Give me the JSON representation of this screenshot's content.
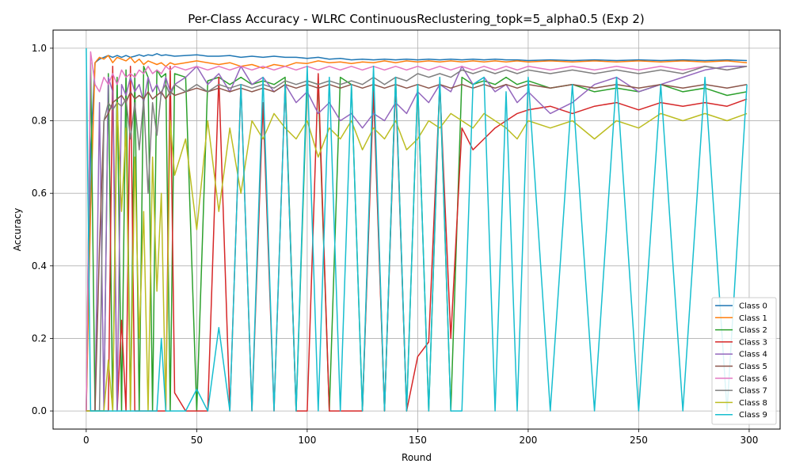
{
  "chart_data": {
    "type": "line",
    "title": "Per-Class Accuracy - WLRC ContinuousReclustering_topk=5_alpha0.5 (Exp 2)",
    "xlabel": "Round",
    "ylabel": "Accuracy",
    "xlim": [
      -15,
      314
    ],
    "ylim": [
      -0.05,
      1.05
    ],
    "xticks": [
      0,
      50,
      100,
      150,
      200,
      250,
      300
    ],
    "yticks": [
      0.0,
      0.2,
      0.4,
      0.6,
      0.8,
      1.0
    ],
    "grid": true,
    "legend_position": "lower-right",
    "x": [
      0,
      2,
      4,
      6,
      8,
      10,
      12,
      14,
      16,
      18,
      20,
      22,
      24,
      26,
      28,
      30,
      32,
      34,
      36,
      38,
      40,
      45,
      50,
      55,
      60,
      65,
      70,
      75,
      80,
      85,
      90,
      95,
      100,
      105,
      110,
      115,
      120,
      125,
      130,
      135,
      140,
      145,
      150,
      155,
      160,
      165,
      170,
      175,
      180,
      185,
      190,
      195,
      200,
      210,
      220,
      230,
      240,
      250,
      260,
      270,
      280,
      290,
      299
    ],
    "series": [
      {
        "name": "Class 0",
        "color": "#1f77b4",
        "values": [
          0.0,
          0.72,
          0.96,
          0.97,
          0.975,
          0.98,
          0.975,
          0.98,
          0.975,
          0.98,
          0.975,
          0.978,
          0.982,
          0.978,
          0.982,
          0.98,
          0.985,
          0.98,
          0.982,
          0.98,
          0.978,
          0.98,
          0.982,
          0.978,
          0.978,
          0.98,
          0.975,
          0.978,
          0.975,
          0.978,
          0.975,
          0.975,
          0.972,
          0.975,
          0.97,
          0.972,
          0.968,
          0.97,
          0.968,
          0.97,
          0.968,
          0.97,
          0.968,
          0.97,
          0.968,
          0.97,
          0.968,
          0.97,
          0.968,
          0.97,
          0.968,
          0.968,
          0.966,
          0.968,
          0.966,
          0.968,
          0.966,
          0.968,
          0.966,
          0.968,
          0.966,
          0.968,
          0.966
        ]
      },
      {
        "name": "Class 1",
        "color": "#ff7f0e",
        "values": [
          0.0,
          0.55,
          0.96,
          0.975,
          0.97,
          0.98,
          0.96,
          0.975,
          0.97,
          0.965,
          0.975,
          0.96,
          0.97,
          0.955,
          0.965,
          0.96,
          0.955,
          0.96,
          0.95,
          0.96,
          0.955,
          0.96,
          0.965,
          0.96,
          0.955,
          0.96,
          0.95,
          0.955,
          0.945,
          0.955,
          0.95,
          0.96,
          0.958,
          0.965,
          0.96,
          0.962,
          0.958,
          0.962,
          0.96,
          0.965,
          0.96,
          0.965,
          0.962,
          0.965,
          0.962,
          0.965,
          0.962,
          0.965,
          0.962,
          0.965,
          0.962,
          0.965,
          0.962,
          0.965,
          0.962,
          0.965,
          0.962,
          0.965,
          0.962,
          0.965,
          0.962,
          0.965,
          0.96
        ]
      },
      {
        "name": "Class 2",
        "color": "#2ca02c",
        "values": [
          0.0,
          0.96,
          0.0,
          0.0,
          0.0,
          0.93,
          0.0,
          0.92,
          0.0,
          0.94,
          0.0,
          0.93,
          0.0,
          0.95,
          0.92,
          0.0,
          0.94,
          0.92,
          0.93,
          0.0,
          0.93,
          0.92,
          0.0,
          0.91,
          0.92,
          0.9,
          0.92,
          0.9,
          0.91,
          0.9,
          0.92,
          0.0,
          0.91,
          0.9,
          0.0,
          0.92,
          0.9,
          0.0,
          0.91,
          0.0,
          0.92,
          0.0,
          0.9,
          0.0,
          0.91,
          0.0,
          0.92,
          0.9,
          0.91,
          0.9,
          0.92,
          0.9,
          0.91,
          0.89,
          0.9,
          0.88,
          0.89,
          0.88,
          0.9,
          0.88,
          0.89,
          0.87,
          0.88
        ]
      },
      {
        "name": "Class 3",
        "color": "#d62728",
        "values": [
          0.0,
          0.0,
          0.0,
          0.0,
          0.0,
          0.0,
          0.95,
          0.0,
          0.25,
          0.0,
          0.95,
          0.0,
          0.0,
          0.0,
          0.0,
          0.0,
          0.0,
          0.0,
          0.0,
          0.95,
          0.05,
          0.0,
          0.0,
          0.0,
          0.92,
          0.0,
          0.9,
          0.0,
          0.85,
          0.0,
          0.9,
          0.0,
          0.0,
          0.93,
          0.0,
          0.0,
          0.0,
          0.0,
          0.88,
          0.0,
          0.9,
          0.0,
          0.15,
          0.19,
          0.9,
          0.2,
          0.78,
          0.72,
          0.75,
          0.78,
          0.8,
          0.82,
          0.83,
          0.84,
          0.82,
          0.84,
          0.85,
          0.83,
          0.85,
          0.84,
          0.85,
          0.84,
          0.86
        ]
      },
      {
        "name": "Class 4",
        "color": "#9467bd",
        "values": [
          0.0,
          0.0,
          0.0,
          0.85,
          0.0,
          0.92,
          0.88,
          0.0,
          0.9,
          0.87,
          0.92,
          0.88,
          0.9,
          0.85,
          0.92,
          0.88,
          0.9,
          0.87,
          0.92,
          0.88,
          0.9,
          0.92,
          0.95,
          0.9,
          0.93,
          0.88,
          0.95,
          0.9,
          0.92,
          0.88,
          0.9,
          0.85,
          0.88,
          0.82,
          0.85,
          0.8,
          0.82,
          0.78,
          0.82,
          0.8,
          0.85,
          0.82,
          0.88,
          0.85,
          0.9,
          0.88,
          0.95,
          0.9,
          0.92,
          0.88,
          0.9,
          0.85,
          0.88,
          0.82,
          0.85,
          0.9,
          0.92,
          0.88,
          0.9,
          0.92,
          0.94,
          0.95,
          0.95
        ]
      },
      {
        "name": "Class 5",
        "color": "#8c564b",
        "values": [
          0.0,
          0.0,
          0.0,
          0.45,
          0.8,
          0.82,
          0.85,
          0.86,
          0.87,
          0.85,
          0.88,
          0.86,
          0.87,
          0.86,
          0.88,
          0.86,
          0.87,
          0.88,
          0.86,
          0.88,
          0.87,
          0.88,
          0.89,
          0.88,
          0.89,
          0.88,
          0.89,
          0.88,
          0.89,
          0.88,
          0.9,
          0.89,
          0.9,
          0.89,
          0.9,
          0.89,
          0.9,
          0.89,
          0.9,
          0.89,
          0.9,
          0.89,
          0.9,
          0.89,
          0.9,
          0.89,
          0.9,
          0.89,
          0.9,
          0.89,
          0.9,
          0.89,
          0.9,
          0.89,
          0.9,
          0.89,
          0.9,
          0.89,
          0.9,
          0.89,
          0.9,
          0.89,
          0.9
        ]
      },
      {
        "name": "Class 6",
        "color": "#e377c2",
        "values": [
          0.0,
          0.99,
          0.9,
          0.88,
          0.92,
          0.9,
          0.93,
          0.9,
          0.94,
          0.92,
          0.93,
          0.92,
          0.94,
          0.93,
          0.95,
          0.93,
          0.94,
          0.93,
          0.95,
          0.94,
          0.95,
          0.94,
          0.95,
          0.94,
          0.95,
          0.94,
          0.95,
          0.94,
          0.95,
          0.94,
          0.95,
          0.94,
          0.95,
          0.94,
          0.95,
          0.94,
          0.95,
          0.94,
          0.95,
          0.94,
          0.95,
          0.94,
          0.95,
          0.94,
          0.95,
          0.94,
          0.95,
          0.94,
          0.95,
          0.94,
          0.95,
          0.94,
          0.95,
          0.94,
          0.95,
          0.94,
          0.95,
          0.94,
          0.95,
          0.94,
          0.95,
          0.94,
          0.95
        ]
      },
      {
        "name": "Class 7",
        "color": "#7f7f7f",
        "values": [
          0.0,
          0.0,
          0.0,
          0.0,
          0.8,
          0.85,
          0.83,
          0.85,
          0.84,
          0.86,
          0.75,
          0.85,
          0.72,
          0.86,
          0.6,
          0.85,
          0.76,
          0.88,
          0.9,
          0.87,
          0.9,
          0.88,
          0.9,
          0.88,
          0.9,
          0.89,
          0.9,
          0.89,
          0.9,
          0.89,
          0.91,
          0.9,
          0.91,
          0.9,
          0.91,
          0.9,
          0.91,
          0.9,
          0.92,
          0.9,
          0.92,
          0.91,
          0.93,
          0.92,
          0.93,
          0.92,
          0.94,
          0.93,
          0.94,
          0.93,
          0.94,
          0.93,
          0.94,
          0.93,
          0.94,
          0.93,
          0.94,
          0.93,
          0.94,
          0.93,
          0.95,
          0.94,
          0.95
        ]
      },
      {
        "name": "Class 8",
        "color": "#bcbd22",
        "values": [
          0.0,
          0.0,
          0.0,
          0.0,
          0.0,
          0.14,
          0.0,
          0.85,
          0.55,
          0.78,
          0.0,
          0.7,
          0.2,
          0.55,
          0.0,
          0.7,
          0.33,
          0.6,
          0.0,
          0.8,
          0.65,
          0.75,
          0.5,
          0.8,
          0.55,
          0.78,
          0.6,
          0.8,
          0.75,
          0.82,
          0.78,
          0.75,
          0.8,
          0.7,
          0.78,
          0.75,
          0.8,
          0.72,
          0.78,
          0.75,
          0.8,
          0.72,
          0.75,
          0.8,
          0.78,
          0.82,
          0.8,
          0.78,
          0.82,
          0.8,
          0.78,
          0.75,
          0.8,
          0.78,
          0.8,
          0.75,
          0.8,
          0.78,
          0.82,
          0.8,
          0.82,
          0.8,
          0.82
        ]
      },
      {
        "name": "Class 9",
        "color": "#17becf",
        "values": [
          1.0,
          0.0,
          0.0,
          0.0,
          0.0,
          0.0,
          0.0,
          0.0,
          0.0,
          0.0,
          0.0,
          0.0,
          0.0,
          0.0,
          0.0,
          0.0,
          0.0,
          0.2,
          0.0,
          0.0,
          0.0,
          0.0,
          0.06,
          0.0,
          0.23,
          0.0,
          0.9,
          0.0,
          0.92,
          0.0,
          0.9,
          0.0,
          0.95,
          0.0,
          0.92,
          0.0,
          0.9,
          0.0,
          0.95,
          0.0,
          0.92,
          0.0,
          0.9,
          0.0,
          0.92,
          0.0,
          0.0,
          0.9,
          0.92,
          0.0,
          0.88,
          0.0,
          0.92,
          0.0,
          0.9,
          0.0,
          0.92,
          0.0,
          0.9,
          0.0,
          0.92,
          0.0,
          0.9
        ]
      }
    ]
  }
}
